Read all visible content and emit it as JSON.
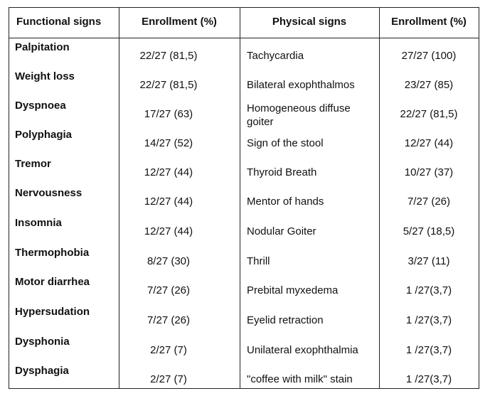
{
  "headers": {
    "functional": "Functional signs",
    "enrollment1": "Enrollment (%)",
    "physical": "Physical signs",
    "enrollment2": "Enrollment (%)"
  },
  "rows": [
    {
      "functional": "Palpitation",
      "f_enroll": "22/27 (81,5)",
      "physical": "Tachycardia",
      "p_enroll": "27/27 (100)"
    },
    {
      "functional": "Weight loss",
      "f_enroll": "22/27 (81,5)",
      "physical": "Bilateral exophthalmos",
      "p_enroll": "23/27 (85)"
    },
    {
      "functional": "Dyspnoea",
      "f_enroll": "17/27 (63)",
      "physical": "Homogeneous diffuse goiter",
      "p_enroll": "22/27 (81,5)"
    },
    {
      "functional": "Polyphagia",
      "f_enroll": "14/27 (52)",
      "physical": "Sign of the stool",
      "p_enroll": "12/27 (44)"
    },
    {
      "functional": "Tremor",
      "f_enroll": "12/27 (44)",
      "physical": "Thyroid Breath",
      "p_enroll": "10/27 (37)"
    },
    {
      "functional": "Nervousness",
      "f_enroll": "12/27 (44)",
      "physical": "Mentor of hands",
      "p_enroll": "7/27 (26)"
    },
    {
      "functional": "Insomnia",
      "f_enroll": "12/27 (44)",
      "physical": "Nodular Goiter",
      "p_enroll": "5/27  (18,5)"
    },
    {
      "functional": "Thermophobia",
      "f_enroll": "8/27 (30)",
      "physical": "Thrill",
      "p_enroll": "3/27 (11)"
    },
    {
      "functional": "Motor diarrhea",
      "f_enroll": "7/27 (26)",
      "physical": "Prebital myxedema",
      "p_enroll": "1 /27(3,7)"
    },
    {
      "functional": "Hypersudation",
      "f_enroll": "7/27  (26)",
      "physical": "Eyelid retraction",
      "p_enroll": "1 /27(3,7)"
    },
    {
      "functional": "Dysphonia",
      "f_enroll": "2/27  (7)",
      "physical": "Unilateral exophthalmia",
      "p_enroll": "1 /27(3,7)"
    },
    {
      "functional": "Dysphagia",
      "f_enroll": "2/27  (7)",
      "physical": "\"coffee with milk\" stain",
      "p_enroll": "1 /27(3,7)"
    }
  ]
}
